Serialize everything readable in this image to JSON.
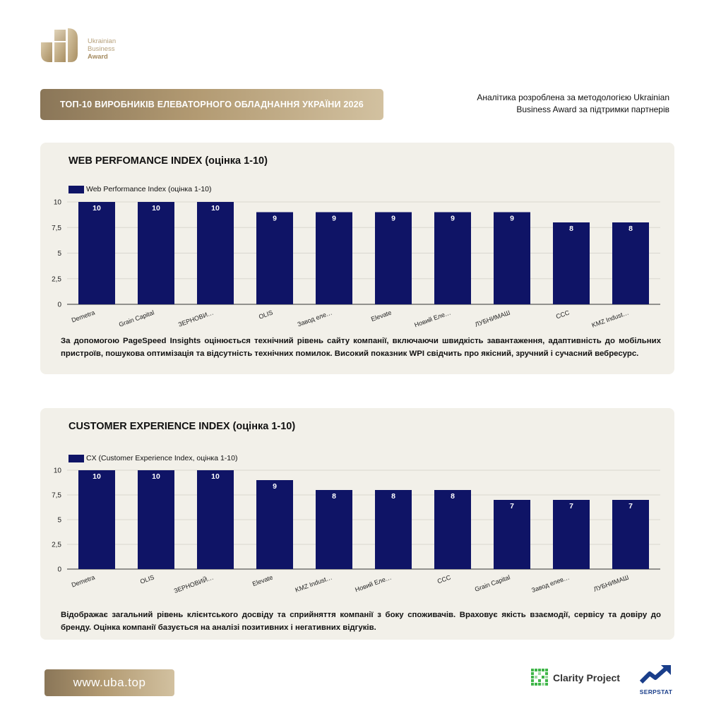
{
  "logo": {
    "line1": "Ukrainian",
    "line2": "Business",
    "line3": "Award"
  },
  "header": {
    "title": "ТОП-10 ВИРОБНИКІВ ЕЛЕВАТОРНОГО ОБЛАДНАННЯ УКРАЇНИ 2026",
    "methodology": "Аналітика розроблена за методологією Ukrainian Business Award за підтримки партнерів"
  },
  "panel1": {
    "title": "WEB PERFOMANCE INDEX (оцінка 1-10)",
    "description": "За допомогою PageSpeed Insights оцінюється технічний рівень сайту компанії, включаючи швидкість завантаження, адаптивність до мобільних пристроїв, пошукова оптимізація та відсутність технічних помилок. Високий показник WPI свідчить про якісний, зручний і сучасний вебресурс."
  },
  "panel2": {
    "title": "CUSTOMER EXPERIENCE INDEX (оцінка 1-10)",
    "description": "Відображає загальний рівень клієнтського досвіду та сприйняття компанії з боку споживачів. Враховує якість взаємодії, сервісу та довіру до бренду. Оцінка компанії базується на аналізі позитивних і негативних відгуків."
  },
  "chart_data": [
    {
      "type": "bar",
      "title": "WEB PERFOMANCE INDEX (оцінка 1-10)",
      "categories": [
        "Demetra",
        "Grain Capital",
        "ЗЕРНОВИ…",
        "OLIS",
        "Завод еле…",
        "Elevate",
        "Новий Еле…",
        "ЛУБНИМАШ",
        "CCC",
        "KMZ Indust…"
      ],
      "series": [
        {
          "name": "Web Performance Index (оцінка 1-10)",
          "values": [
            10,
            10,
            10,
            9,
            9,
            9,
            9,
            9,
            8,
            8
          ]
        }
      ],
      "y_ticks": [
        "0",
        "2,5",
        "5",
        "7,5",
        "10"
      ],
      "ylim": [
        0,
        10
      ],
      "color": "#0f1466",
      "legend": "top-left"
    },
    {
      "type": "bar",
      "title": "CUSTOMER EXPERIENCE INDEX (оцінка 1-10)",
      "categories": [
        "Demetra",
        "OLIS",
        "ЗЕРНОВИЙ…",
        "Elevate",
        "KMZ Indust…",
        "Новий Еле…",
        "CCC",
        "Grain Capital",
        "Завод елев…",
        "ЛУБНИМАШ"
      ],
      "series": [
        {
          "name": "CX (Customer Experience Index, оцінка 1-10)",
          "values": [
            10,
            10,
            10,
            9,
            8,
            8,
            8,
            7,
            7,
            7
          ]
        }
      ],
      "y_ticks": [
        "0",
        "2,5",
        "5",
        "7,5",
        "10"
      ],
      "ylim": [
        0,
        10
      ],
      "color": "#0f1466",
      "legend": "top-left"
    }
  ],
  "footer": {
    "url": "www.uba.top",
    "partner1": "Clarity Project",
    "partner2": "SERPSTAT"
  },
  "colors": {
    "gold": "#b29a72",
    "navy": "#0f1466",
    "panel_bg": "#f2f0e9"
  }
}
